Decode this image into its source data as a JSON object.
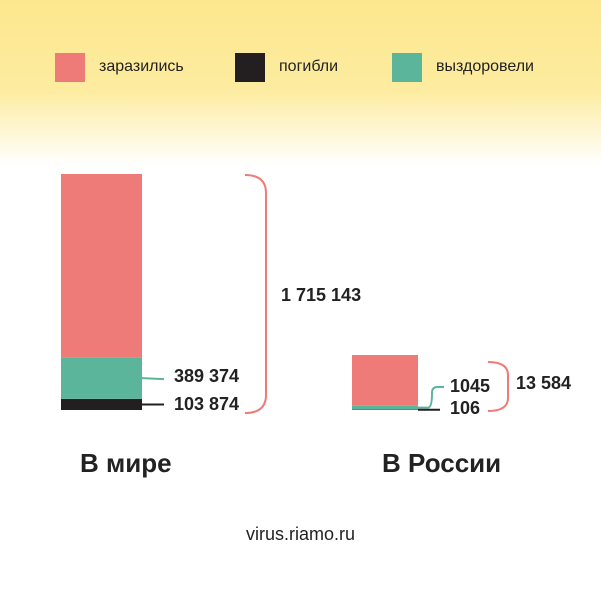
{
  "legend": [
    {
      "label": "заразились",
      "color": "#ef7b78"
    },
    {
      "label": "погибли",
      "color": "#231f20"
    },
    {
      "label": "выздоровели",
      "color": "#5bb59a"
    }
  ],
  "chart_data": {
    "type": "bar",
    "stacked": true,
    "categories": [
      "В мире",
      "В России"
    ],
    "series": [
      {
        "name": "погибли",
        "values": [
          103874,
          106
        ],
        "color": "#231f20"
      },
      {
        "name": "выздоровели",
        "values": [
          389374,
          1045
        ],
        "color": "#5bb59a"
      },
      {
        "name": "заразились",
        "values": [
          1715143,
          13584
        ],
        "color": "#ef7b78"
      }
    ],
    "value_labels": {
      "total": [
        "1 715 143",
        "13 584"
      ],
      "recovered": [
        "389 374",
        "1045"
      ],
      "deaths": [
        "103 874",
        "106"
      ]
    },
    "bracket_color": "#ef7b78"
  },
  "source": "virus.riamo.ru"
}
